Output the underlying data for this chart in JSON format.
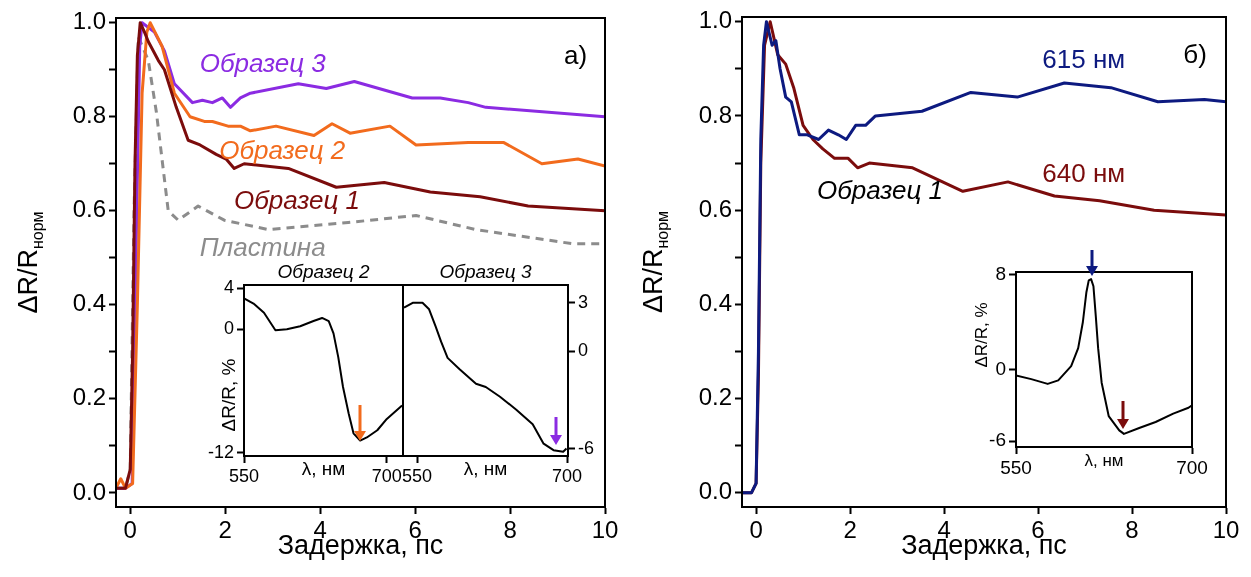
{
  "chart_data": [
    {
      "type": "line",
      "xlabel": "Задержка, пс",
      "ylabel": "ΔR/R$_{норм}$",
      "xlim": [
        -0.3,
        10
      ],
      "xticks": [
        0,
        2,
        4,
        6,
        8,
        10
      ],
      "ylim": [
        -0.03,
        1.01
      ],
      "yticks": [
        {
          "value": 0,
          "label": "0.0"
        },
        {
          "value": 0.1,
          "label": null
        },
        0.2,
        {
          "value": 0.3,
          "label": null
        },
        0.4,
        {
          "value": 0.5,
          "label": null
        },
        0.6,
        {
          "value": 0.7,
          "label": null
        },
        0.8,
        {
          "value": 0.9,
          "label": null
        },
        {
          "value": 1,
          "label": "1.0"
        }
      ],
      "annotations": [
        "а)"
      ],
      "series": [
        {
          "name": "Образец 1",
          "color": "#7b0c0c",
          "x": [
            -0.3,
            -0.1,
            0,
            0.05,
            0.1,
            0.15,
            0.21,
            0.3,
            0.38,
            0.59,
            0.72,
            0.97,
            1.22,
            1.47,
            1.81,
            2.02,
            2.19,
            2.4,
            3.33,
            4.34,
            5.35,
            6.32,
            7.37,
            8.38,
            10
          ],
          "values": [
            0.01,
            0.01,
            0.05,
            0.3,
            0.7,
            0.93,
            1.0,
            0.98,
            0.96,
            0.92,
            0.9,
            0.82,
            0.75,
            0.74,
            0.72,
            0.71,
            0.69,
            0.7,
            0.69,
            0.65,
            0.66,
            0.64,
            0.63,
            0.61,
            0.6
          ]
        },
        {
          "name": "Образец 2",
          "color": "#f26b1d",
          "x": [
            -0.3,
            -0.2,
            -0.1,
            0.05,
            0.15,
            0.25,
            0.35,
            0.42,
            0.67,
            0.93,
            1.26,
            1.56,
            1.73,
            2.06,
            2.32,
            2.53,
            3.07,
            3.87,
            4.25,
            4.63,
            5.47,
            6.02,
            7.12,
            7.87,
            8.67,
            9.43,
            10
          ],
          "values": [
            0.01,
            0.03,
            0.01,
            0.02,
            0.4,
            0.85,
            0.98,
            1.0,
            0.95,
            0.85,
            0.8,
            0.79,
            0.79,
            0.78,
            0.78,
            0.77,
            0.78,
            0.76,
            0.785,
            0.765,
            0.78,
            0.74,
            0.745,
            0.745,
            0.7,
            0.71,
            0.695
          ]
        },
        {
          "name": "Образец 3",
          "color": "#8b2be2",
          "x": [
            -0.3,
            -0.1,
            0.04,
            0.12,
            0.2,
            0.25,
            0.51,
            0.72,
            0.93,
            1.31,
            1.52,
            1.73,
            1.94,
            2.11,
            2.32,
            2.53,
            3.54,
            4.13,
            4.72,
            5.94,
            6.53,
            7.12,
            7.49,
            10
          ],
          "values": [
            0.01,
            0.01,
            0.02,
            0.5,
            0.95,
            1.0,
            0.98,
            0.94,
            0.87,
            0.83,
            0.835,
            0.83,
            0.84,
            0.82,
            0.84,
            0.85,
            0.87,
            0.86,
            0.875,
            0.84,
            0.84,
            0.83,
            0.82,
            0.8
          ]
        },
        {
          "name": "Пластина",
          "color": "#8c8c8c",
          "line_style": "dashed",
          "x": [
            -0.3,
            -0.1,
            0,
            0.08,
            0.17,
            0.38,
            0.55,
            0.8,
            1.01,
            1.43,
            1.98,
            2.91,
            4.59,
            6.02,
            7.28,
            9.31,
            10
          ],
          "values": [
            0.01,
            0.01,
            0.05,
            0.6,
            0.97,
            0.92,
            0.81,
            0.6,
            0.58,
            0.61,
            0.58,
            0.56,
            0.575,
            0.59,
            0.56,
            0.53,
            0.53
          ]
        }
      ]
    },
    {
      "type": "line",
      "title": "Образец 2",
      "xlabel": "λ, нм",
      "ylabel": "ΔR/R, %",
      "xlim": [
        550,
        717
      ],
      "xticks": [
        550,
        700
      ],
      "ylim": [
        -12.3,
        4.3
      ],
      "yticks": [
        4,
        0,
        -12
      ],
      "series": [
        {
          "color": "#000000",
          "x": [
            550,
            560,
            571,
            583,
            595,
            609,
            623,
            632,
            639,
            644,
            649,
            654,
            660,
            665,
            672,
            679,
            690,
            700,
            716
          ],
          "values": [
            3.0,
            2.5,
            1.6,
            -0.1,
            0,
            0.3,
            0.8,
            1.1,
            0.8,
            -0.4,
            -2.7,
            -5.6,
            -8.2,
            -10.1,
            -10.8,
            -10.5,
            -9.8,
            -8.7,
            -7.4
          ]
        }
      ]
    },
    {
      "type": "line",
      "title": "Образец 3",
      "xlabel": "λ, нм",
      "xlim": [
        536,
        701
      ],
      "xticks": [
        550,
        700
      ],
      "y2lim": [
        -6.46,
        4.1
      ],
      "y2ticks": [
        3,
        0,
        -6
      ],
      "series": [
        {
          "color": "#000000",
          "axis": "y2",
          "x": [
            537,
            545.7,
            555.5,
            562.1,
            568.6,
            574.1,
            580.6,
            592.6,
            609,
            618.8,
            633,
            649.3,
            665.7,
            676.6,
            686.5,
            696.2,
            699.5
          ],
          "values": [
            2.7,
            3.0,
            3.0,
            2.6,
            1.55,
            0.6,
            -0.4,
            -1.1,
            -2.0,
            -2.2,
            -2.8,
            -3.6,
            -4.5,
            -5.7,
            -6.1,
            -6.2,
            -6.0
          ]
        }
      ]
    },
    {
      "type": "line",
      "xlabel": "Задержка, пс",
      "ylabel": "ΔR/R$_{норм}$",
      "xlim": [
        -0.3,
        10
      ],
      "xticks": [
        0,
        2,
        4,
        6,
        8,
        10
      ],
      "ylim": [
        -0.03,
        1.01
      ],
      "yticks": [
        {
          "value": 0,
          "label": "0.0"
        },
        {
          "value": 0.1,
          "label": null
        },
        0.2,
        {
          "value": 0.3,
          "label": null
        },
        0.4,
        {
          "value": 0.5,
          "label": null
        },
        0.6,
        {
          "value": 0.7,
          "label": null
        },
        0.8,
        {
          "value": 0.9,
          "label": null
        },
        {
          "value": 1,
          "label": "1.0"
        }
      ],
      "annotations": [
        "б)",
        "Образец 1"
      ],
      "series": [
        {
          "name": "615 нм",
          "color": "#0d1a80",
          "x": [
            -0.3,
            -0.1,
            0,
            0.05,
            0.1,
            0.16,
            0.22,
            0.34,
            0.42,
            0.51,
            0.63,
            0.75,
            0.92,
            1.09,
            1.33,
            1.54,
            1.75,
            1.92,
            2.12,
            2.33,
            2.54,
            3.53,
            4.57,
            5.56,
            6.56,
            7.55,
            8.55,
            9.54,
            10
          ],
          "values": [
            0,
            0,
            0.02,
            0.3,
            0.75,
            0.95,
            1.0,
            0.95,
            0.96,
            0.9,
            0.84,
            0.83,
            0.76,
            0.76,
            0.75,
            0.77,
            0.76,
            0.75,
            0.78,
            0.78,
            0.8,
            0.81,
            0.85,
            0.84,
            0.87,
            0.86,
            0.83,
            0.835,
            0.83
          ]
        },
        {
          "name": "640 нм",
          "color": "#7b0c0c",
          "x": [
            -0.3,
            -0.1,
            0,
            0.05,
            0.1,
            0.18,
            0.3,
            0.46,
            0.63,
            0.8,
            1.0,
            1.21,
            1.42,
            1.67,
            1.96,
            2.16,
            2.41,
            3.33,
            4.4,
            5.36,
            6.35,
            7.31,
            8.47,
            10
          ],
          "values": [
            0,
            0,
            0.02,
            0.25,
            0.7,
            0.95,
            1.0,
            0.93,
            0.91,
            0.86,
            0.78,
            0.75,
            0.73,
            0.71,
            0.71,
            0.69,
            0.7,
            0.69,
            0.64,
            0.66,
            0.63,
            0.62,
            0.6,
            0.59
          ]
        }
      ]
    },
    {
      "type": "line",
      "xlabel": "λ, нм",
      "ylabel": "ΔR/R, %",
      "xlim": [
        550,
        700
      ],
      "xticks": [
        550,
        700
      ],
      "ylim": [
        -6.5,
        8.2
      ],
      "yticks": [
        8,
        0,
        -6
      ],
      "series": [
        {
          "color": "#000000",
          "x": [
            550,
            563,
            577,
            586,
            597,
            603,
            607,
            610,
            612,
            614,
            616,
            618,
            620,
            623,
            629,
            638,
            642,
            655,
            669,
            684,
            697,
            700
          ],
          "values": [
            -0.5,
            -0.8,
            -1.2,
            -0.9,
            0.3,
            1.8,
            4.0,
            6.5,
            7.5,
            7.6,
            7.0,
            4.5,
            1.8,
            -1.1,
            -3.9,
            -5.1,
            -5.4,
            -4.9,
            -4.4,
            -3.7,
            -3.2,
            -3.0
          ]
        }
      ]
    }
  ]
}
